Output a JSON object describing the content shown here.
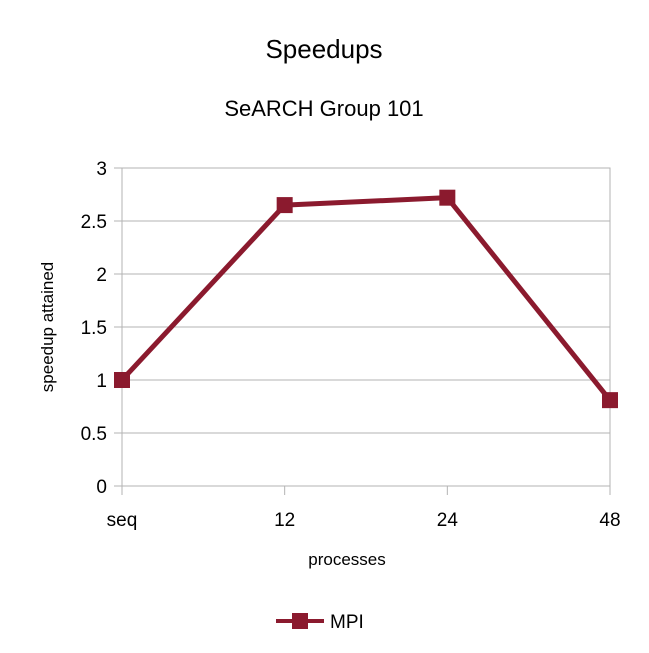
{
  "chart_data": {
    "type": "line",
    "title": "Speedups",
    "subtitle": "SeARCH Group 101",
    "xlabel": "processes",
    "ylabel": "speedup attained",
    "categories": [
      "seq",
      "12",
      "24",
      "48"
    ],
    "series": [
      {
        "name": "MPI",
        "values": [
          1.0,
          2.65,
          2.72,
          0.81
        ],
        "color": "#8b1a2e",
        "marker": "square"
      }
    ],
    "ylim": [
      0,
      3
    ],
    "yticks": [
      "0",
      "0.5",
      "1",
      "1.5",
      "2",
      "2.5",
      "3"
    ],
    "grid": "horizontal",
    "legend": "bottom"
  }
}
